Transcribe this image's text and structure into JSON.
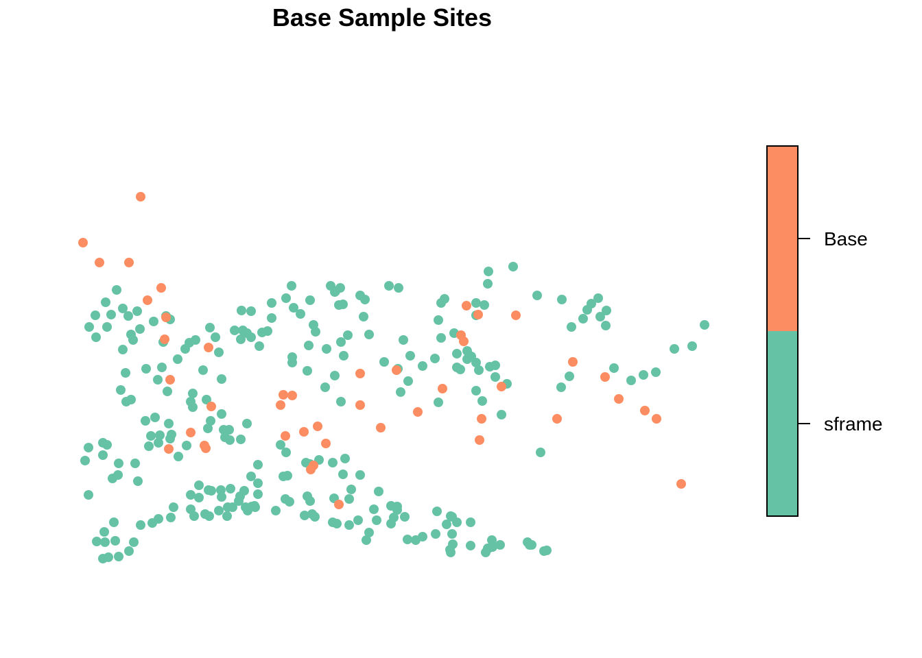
{
  "chart_data": {
    "type": "scatter",
    "title": "Base Sample Sites",
    "xlabel": "",
    "ylabel": "",
    "axes_shown": false,
    "grid": false,
    "legend_placement": "right",
    "legend_type": "color-bar",
    "xlim": [
      0,
      1000
    ],
    "ylim": [
      0,
      800
    ],
    "series": [
      {
        "name": "Base",
        "color": "#FC8D62",
        "points": [
          [
            61,
            546
          ],
          [
            85,
            517
          ],
          [
            128,
            517
          ],
          [
            145,
            613
          ],
          [
            155,
            462
          ],
          [
            175,
            480
          ],
          [
            180,
            405
          ],
          [
            182,
            437
          ],
          [
            188,
            346
          ],
          [
            186,
            245
          ],
          [
            218,
            269
          ],
          [
            244,
            393
          ],
          [
            248,
            307
          ],
          [
            238,
            250
          ],
          [
            240,
            246
          ],
          [
            349,
            309
          ],
          [
            353,
            324
          ],
          [
            356,
            264
          ],
          [
            366,
            323
          ],
          [
            383,
            270
          ],
          [
            393,
            215
          ],
          [
            397,
            221
          ],
          [
            403,
            278
          ],
          [
            415,
            253
          ],
          [
            465,
            355
          ],
          [
            465,
            309
          ],
          [
            495,
            276
          ],
          [
            518,
            360
          ],
          [
            549,
            299
          ],
          [
            585,
            333
          ],
          [
            616,
            402
          ],
          [
            612,
            411
          ],
          [
            620,
            454
          ],
          [
            637,
            441
          ],
          [
            671,
            336
          ],
          [
            639,
            258
          ],
          [
            642,
            289
          ],
          [
            692,
            440
          ],
          [
            752,
            289
          ],
          [
            775,
            372
          ],
          [
            822,
            350
          ],
          [
            842,
            318
          ],
          [
            880,
            301
          ],
          [
            897,
            289
          ],
          [
            933,
            194
          ],
          [
            434,
            164
          ]
        ]
      },
      {
        "name": "sframe",
        "color": "#66C2A5",
        "points": [
          [
            110,
            477
          ],
          [
            94,
            459
          ],
          [
            102,
            441
          ],
          [
            96,
            423
          ],
          [
            80,
            408
          ],
          [
            70,
            423
          ],
          [
            79,
            440
          ],
          [
            119,
            450
          ],
          [
            127,
            439
          ],
          [
            140,
            446
          ],
          [
            131,
            412
          ],
          [
            134,
            404
          ],
          [
            144,
            420
          ],
          [
            176,
            364
          ],
          [
            178,
            401
          ],
          [
            199,
            376
          ],
          [
            259,
            386
          ],
          [
            291,
            405
          ],
          [
            294,
            418
          ],
          [
            300,
            414
          ],
          [
            322,
            415
          ],
          [
            336,
            436
          ],
          [
            318,
            395
          ],
          [
            336,
            458
          ],
          [
            365,
            483
          ],
          [
            378,
            442
          ],
          [
            392,
            462
          ],
          [
            400,
            416
          ],
          [
            434,
            455
          ],
          [
            429,
            475
          ],
          [
            422,
            483
          ],
          [
            428,
            474
          ],
          [
            436,
            480
          ],
          [
            440,
            456
          ],
          [
            465,
            469
          ],
          [
            472,
            463
          ],
          [
            470,
            438
          ],
          [
            507,
            483
          ],
          [
            521,
            480
          ],
          [
            528,
            404
          ],
          [
            579,
            433
          ],
          [
            583,
            458
          ],
          [
            588,
            464
          ],
          [
            602,
            414
          ],
          [
            634,
            440
          ],
          [
            634,
            458
          ],
          [
            646,
            455
          ],
          [
            651,
            486
          ],
          [
            652,
            504
          ],
          [
            688,
            511
          ],
          [
            723,
            469
          ],
          [
            759,
            463
          ],
          [
            773,
            423
          ],
          [
            790,
            435
          ],
          [
            802,
            457
          ],
          [
            812,
            465
          ],
          [
            796,
            448
          ],
          [
            815,
            438
          ],
          [
            824,
            447
          ],
          [
            923,
            391
          ],
          [
            949,
            395
          ],
          [
            967,
            426
          ],
          [
            896,
            357
          ],
          [
            878,
            353
          ],
          [
            860,
            345
          ],
          [
            835,
            363
          ],
          [
            758,
            335
          ],
          [
            770,
            351
          ],
          [
            823,
            425
          ],
          [
            621,
            388
          ],
          [
            627,
            380
          ],
          [
            654,
            365
          ],
          [
            662,
            367
          ],
          [
            662,
            350
          ],
          [
            606,
            384
          ],
          [
            621,
            376
          ],
          [
            606,
            364
          ],
          [
            638,
            360
          ],
          [
            556,
            366
          ],
          [
            538,
            381
          ],
          [
            478,
            412
          ],
          [
            500,
            372
          ],
          [
            520,
            362
          ],
          [
            583,
            407
          ],
          [
            524,
            328
          ],
          [
            535,
            344
          ],
          [
            579,
            313
          ],
          [
            643,
            315
          ],
          [
            634,
            330
          ],
          [
            679,
            340
          ],
          [
            634,
            371
          ],
          [
            671,
            295
          ],
          [
            728,
            240
          ],
          [
            611,
            361
          ],
          [
            574,
            377
          ],
          [
            414,
            335
          ],
          [
            428,
            352
          ],
          [
            437,
            314
          ],
          [
            416,
            391
          ],
          [
            437,
            401
          ],
          [
            441,
            381
          ],
          [
            447,
            411
          ],
          [
            388,
            359
          ],
          [
            366,
            379
          ],
          [
            366,
            371
          ],
          [
            330,
            417
          ],
          [
            254,
            408
          ],
          [
            306,
            408
          ],
          [
            292,
            447
          ],
          [
            306,
            446
          ],
          [
            390,
            396
          ],
          [
            397,
            426
          ],
          [
            357,
            465
          ],
          [
            368,
            451
          ],
          [
            282,
            418
          ],
          [
            225,
            404
          ],
          [
            246,
            422
          ],
          [
            216,
            400
          ],
          [
            164,
            431
          ],
          [
            182,
            439
          ],
          [
            188,
            434
          ],
          [
            263,
            347
          ],
          [
            221,
            326
          ],
          [
            184,
            329
          ],
          [
            186,
            282
          ],
          [
            221,
            306
          ],
          [
            241,
            317
          ],
          [
            243,
            275
          ],
          [
            247,
            286
          ],
          [
            268,
            262
          ],
          [
            274,
            273
          ],
          [
            275,
            258
          ],
          [
            266,
            273
          ],
          [
            291,
            259
          ],
          [
            236,
            360
          ],
          [
            210,
            391
          ],
          [
            119,
            390
          ],
          [
            123,
            356
          ],
          [
            153,
            362
          ],
          [
            170,
            346
          ],
          [
            218,
            314
          ],
          [
            263,
            296
          ],
          [
            300,
            282
          ],
          [
            316,
            222
          ],
          [
            392,
            223
          ],
          [
            357,
            240
          ],
          [
            349,
            251
          ],
          [
            386,
            225
          ],
          [
            362,
            168
          ],
          [
            356,
            172
          ],
          [
            307,
            161
          ],
          [
            306,
            205
          ],
          [
            353,
            205
          ],
          [
            359,
            206
          ],
          [
            388,
            176
          ],
          [
            392,
            169
          ],
          [
            427,
            173
          ],
          [
            452,
            186
          ],
          [
            465,
            207
          ],
          [
            440,
            208
          ],
          [
            443,
            231
          ],
          [
            425,
            225
          ],
          [
            405,
            229
          ],
          [
            449,
            172
          ],
          [
            431,
            136
          ],
          [
            489,
            141
          ],
          [
            492,
            183
          ],
          [
            510,
            162
          ],
          [
            514,
            145
          ],
          [
            519,
            161
          ],
          [
            519,
            156
          ],
          [
            510,
            136
          ],
          [
            478,
            123
          ],
          [
            474,
            112
          ],
          [
            534,
            113
          ],
          [
            546,
            112
          ],
          [
            556,
            117
          ],
          [
            575,
            121
          ],
          [
            591,
            135
          ],
          [
            597,
            147
          ],
          [
            599,
            146
          ],
          [
            606,
            138
          ],
          [
            596,
            98
          ],
          [
            626,
            104
          ],
          [
            626,
            138
          ],
          [
            651,
            100
          ],
          [
            652,
            100
          ],
          [
            597,
            94
          ],
          [
            600,
            106
          ],
          [
            648,
            94
          ],
          [
            669,
            105
          ],
          [
            715,
            105
          ],
          [
            733,
            96
          ],
          [
            737,
            97
          ],
          [
            709,
            109
          ],
          [
            712,
            105
          ],
          [
            658,
            102
          ],
          [
            657,
            112
          ],
          [
            599,
            121
          ],
          [
            577,
            154
          ],
          [
            530,
            146
          ],
          [
            485,
            157
          ],
          [
            462,
            141
          ],
          [
            449,
            134
          ],
          [
            425,
            138
          ],
          [
            399,
            146
          ],
          [
            395,
            150
          ],
          [
            384,
            148
          ],
          [
            342,
            155
          ],
          [
            312,
            160
          ],
          [
            290,
            176
          ],
          [
            316,
            179
          ],
          [
            276,
            187
          ],
          [
            262,
            185
          ],
          [
            248,
            184
          ],
          [
            230,
            174
          ],
          [
            244,
            185
          ],
          [
            263,
            175
          ],
          [
            230,
            192
          ],
          [
            218,
            178
          ],
          [
            141,
            198
          ],
          [
            104,
            202
          ],
          [
            113,
            224
          ],
          [
            64,
            228
          ],
          [
            69,
            247
          ],
          [
            90,
            254
          ],
          [
            96,
            251
          ],
          [
            137,
            224
          ],
          [
            160,
            264
          ],
          [
            116,
            331
          ],
          [
            124,
            314
          ],
          [
            131,
            317
          ],
          [
            152,
            286
          ],
          [
            166,
            291
          ],
          [
            173,
            265
          ],
          [
            200,
            234
          ],
          [
            212,
            250
          ],
          [
            188,
            260
          ],
          [
            190,
            266
          ],
          [
            171,
            254
          ],
          [
            157,
            249
          ],
          [
            112,
            207
          ],
          [
            90,
            236
          ],
          [
            69,
            178
          ],
          [
            81,
            110
          ],
          [
            93,
            109
          ],
          [
            92,
            124
          ],
          [
            106,
            138
          ],
          [
            108,
            111
          ],
          [
            128,
            96
          ],
          [
            113,
            88
          ],
          [
            90,
            85
          ],
          [
            98,
            87
          ],
          [
            135,
            109
          ],
          [
            145,
            134
          ],
          [
            162,
            137
          ],
          [
            171,
            143
          ],
          [
            189,
            145
          ],
          [
            193,
            160
          ],
          [
            223,
            147
          ],
          [
            218,
            157
          ],
          [
            245,
            147
          ],
          [
            239,
            150
          ],
          [
            259,
            155
          ],
          [
            279,
            160
          ],
          [
            301,
            155
          ],
          [
            316,
            195
          ],
          [
            288,
            169
          ],
          [
            296,
            184
          ],
          [
            271,
            147
          ],
          [
            272,
            160
          ],
          [
            298,
            160
          ],
          [
            311,
            162
          ]
        ]
      }
    ],
    "legend": {
      "entries": [
        "Base",
        "sframe"
      ],
      "colors": [
        "#FC8D62",
        "#66C2A5"
      ]
    }
  }
}
